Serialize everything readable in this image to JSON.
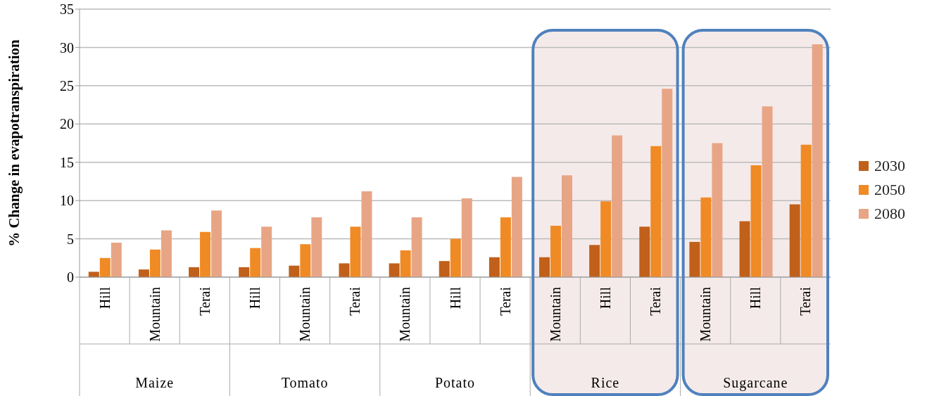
{
  "chart_data": {
    "type": "bar",
    "ylabel": "% Change in evapotranspiration",
    "categories": [
      "Hill",
      "Mountain",
      "Terai",
      "Hill",
      "Mountain",
      "Terai",
      "Mountain",
      "Hill",
      "Terai",
      "Mountain",
      "Hill",
      "Terai",
      "Mountain",
      "Hill",
      "Terai"
    ],
    "annotations": [
      "Maize",
      "Tomato",
      "Potato",
      "Rice",
      "Sugarcane"
    ],
    "series": [
      {
        "name": "2030",
        "color": "#c0601a",
        "values": [
          0.7,
          1.0,
          1.3,
          1.3,
          1.5,
          1.8,
          1.8,
          2.1,
          2.6,
          2.6,
          4.2,
          6.6,
          4.6,
          7.3,
          9.5
        ]
      },
      {
        "name": "2050",
        "color": "#f08a24",
        "values": [
          2.5,
          3.6,
          5.9,
          3.8,
          4.3,
          6.6,
          3.5,
          5.0,
          7.8,
          6.7,
          9.9,
          17.1,
          10.4,
          14.6,
          17.3
        ]
      },
      {
        "name": "2080",
        "color": "#e8a585",
        "values": [
          4.5,
          6.1,
          8.7,
          6.6,
          7.8,
          11.2,
          7.8,
          10.3,
          13.1,
          13.3,
          18.5,
          24.6,
          17.5,
          22.3,
          30.4
        ]
      }
    ],
    "ylim": [
      0,
      35
    ],
    "yticks": [
      0,
      5,
      10,
      15,
      20,
      25,
      30,
      35
    ],
    "grid": "y",
    "legend": "right"
  }
}
